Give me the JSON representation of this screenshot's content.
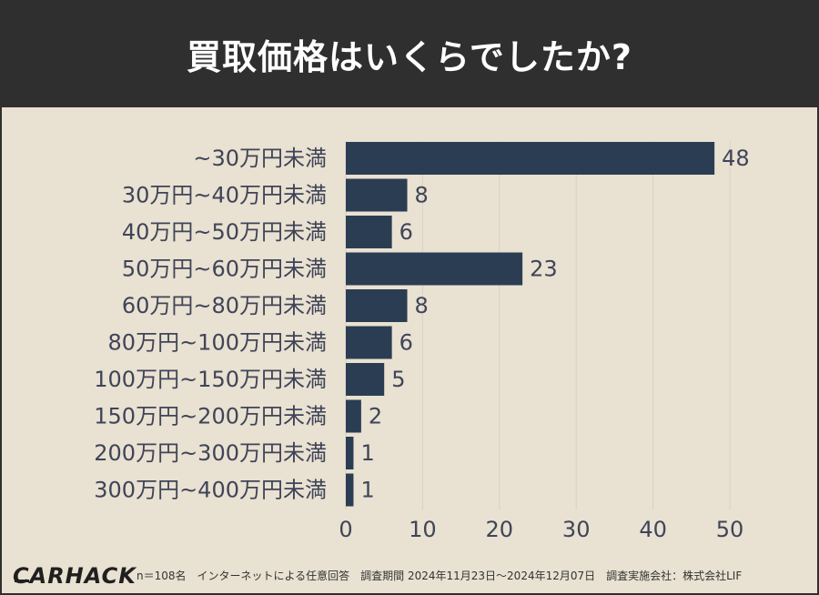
{
  "header": {
    "title": "買取価格はいくらでしたか?"
  },
  "chart_data": {
    "type": "bar",
    "orientation": "horizontal",
    "categories": [
      "~30万円未満",
      "30万円~40万円未満",
      "40万円~50万円未満",
      "50万円~60万円未満",
      "60万円~80万円未満",
      "80万円~100万円未満",
      "100万円~150万円未満",
      "150万円~200万円未満",
      "200万円~300万円未満",
      "300万円~400万円未満"
    ],
    "values": [
      48,
      8,
      6,
      23,
      8,
      6,
      5,
      2,
      1,
      1
    ],
    "xlim": [
      0,
      50
    ],
    "xticks": [
      0,
      10,
      20,
      30,
      40,
      50
    ],
    "grid": true,
    "colors": {
      "bar": "#2b3d52",
      "grid": "#d7d1c6",
      "label": "#3f4458",
      "value": "#3f4458",
      "tick": "#3f4458"
    }
  },
  "footer": {
    "logo": "CARHACK",
    "note": "n＝108名　インターネットによる任意回答　調査期間 2024年11月23日〜2024年12月07日　調査実施会社：株式会社LIF"
  }
}
